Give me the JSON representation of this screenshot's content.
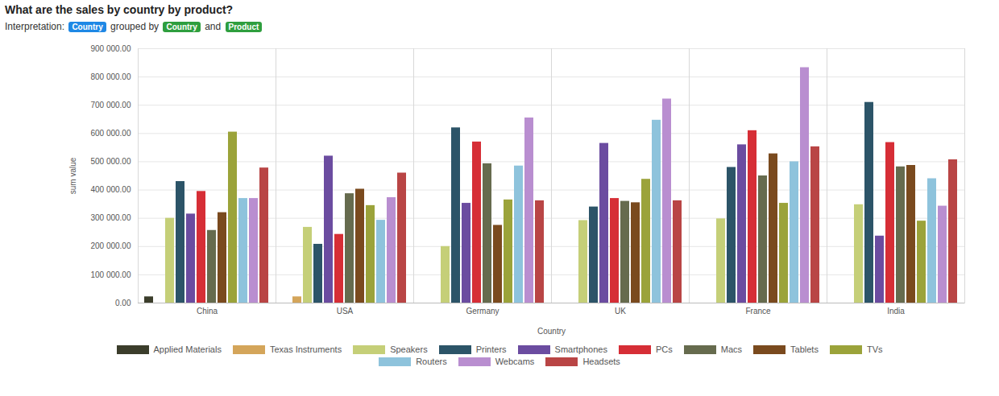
{
  "chart_data": {
    "type": "bar",
    "title": "What are the sales by country by product?",
    "subtitle": [
      "Interpretation:",
      "Country",
      "grouped by",
      "Country",
      "and",
      "Product"
    ],
    "x_label": "Country",
    "y_label": "sum value",
    "categories": [
      "China",
      "USA",
      "Germany",
      "UK",
      "France",
      "India"
    ],
    "series": [
      {
        "name": "Applied Materials",
        "color": "#3b3d2b",
        "values": [
          22000,
          null,
          null,
          null,
          null,
          null
        ]
      },
      {
        "name": "Texas Instruments",
        "color": "#d4a55a",
        "values": [
          null,
          22000,
          null,
          null,
          null,
          null
        ]
      },
      {
        "name": "Speakers",
        "color": "#c5cf78",
        "values": [
          300000,
          268000,
          200000,
          292000,
          298000,
          348000
        ]
      },
      {
        "name": "Printers",
        "color": "#2c5468",
        "values": [
          430000,
          208000,
          620000,
          340000,
          480000,
          710000
        ]
      },
      {
        "name": "Smartphones",
        "color": "#6b4ca0",
        "values": [
          315000,
          520000,
          353000,
          565000,
          560000,
          237000
        ]
      },
      {
        "name": "PCs",
        "color": "#d62e36",
        "values": [
          395000,
          243000,
          570000,
          370000,
          610000,
          568000
        ]
      },
      {
        "name": "Macs",
        "color": "#666b4e",
        "values": [
          257000,
          387000,
          493000,
          360000,
          450000,
          482000
        ]
      },
      {
        "name": "Tablets",
        "color": "#7a4a1e",
        "values": [
          320000,
          403000,
          275000,
          355000,
          528000,
          487000
        ]
      },
      {
        "name": "TVs",
        "color": "#9ba33a",
        "values": [
          605000,
          345000,
          365000,
          438000,
          353000,
          290000
        ]
      },
      {
        "name": "Routers",
        "color": "#8ec3dc",
        "values": [
          370000,
          293000,
          485000,
          647000,
          500000,
          440000
        ]
      },
      {
        "name": "Webcams",
        "color": "#b98ed0",
        "values": [
          370000,
          373000,
          655000,
          722000,
          833000,
          343000
        ]
      },
      {
        "name": "Headsets",
        "color": "#b94545",
        "values": [
          478000,
          460000,
          362000,
          362000,
          553000,
          507000
        ]
      }
    ],
    "ylim": [
      0,
      900000
    ],
    "yticks": [
      {
        "value": 0,
        "label": "0.00"
      },
      {
        "value": 100000,
        "label": "100 000.00"
      },
      {
        "value": 200000,
        "label": "200 000.00"
      },
      {
        "value": 300000,
        "label": "300 000.00"
      },
      {
        "value": 400000,
        "label": "400 000.00"
      },
      {
        "value": 500000,
        "label": "500 000.00"
      },
      {
        "value": 600000,
        "label": "600 000.00"
      },
      {
        "value": 700000,
        "label": "700 000.00"
      },
      {
        "value": 800000,
        "label": "800 000.00"
      },
      {
        "value": 900000,
        "label": "900 000.00"
      }
    ],
    "grid": true,
    "legend": "bottom"
  }
}
